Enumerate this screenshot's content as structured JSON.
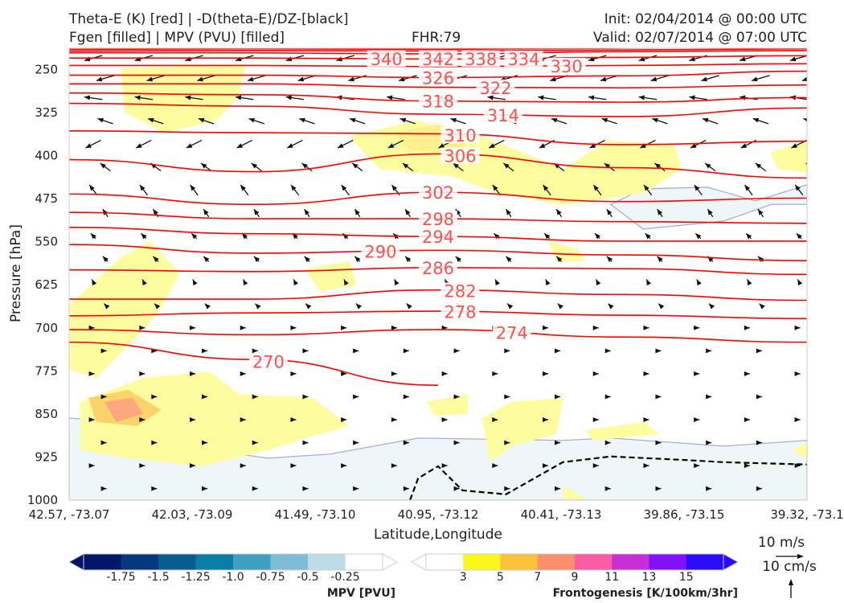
{
  "header": {
    "title_line1": "Theta-E (K) [red] | -D(theta-E)/DZ-[black]",
    "title_line2": "Fgen [filled] | MPV (PVU) [filled]",
    "fhr": "FHR:79",
    "init": "Init: 02/04/2014 @ 00:00 UTC",
    "valid": "Valid: 02/07/2014 @ 07:00 UTC"
  },
  "chart_data": {
    "type": "cross-section",
    "xlabel": "Latitude,Longitude",
    "ylabel": "Pressure [hPa]",
    "ylim": [
      213,
      1000
    ],
    "yticks": [
      "250",
      "325",
      "400",
      "475",
      "550",
      "625",
      "700",
      "775",
      "850",
      "925",
      "1000"
    ],
    "xticks": [
      "42.57, -73.07",
      "42.03, -73.09",
      "41.49, -73.10",
      "40.95, -73.12",
      "40.41, -73.13",
      "39.86, -73.15",
      "39.32, -73.1"
    ],
    "sample_fractions": [
      0,
      0.25,
      0.5,
      0.75,
      1
    ],
    "theta_e_contours": [
      {
        "label": "342",
        "p": [
          215,
          214,
          215,
          213,
          211
        ],
        "label_at": 0.5
      },
      {
        "label": "340",
        "p": [
          218,
          217,
          218,
          216,
          214
        ],
        "label_at": 0.43
      },
      {
        "label": "338",
        "p": [
          221,
          221,
          223,
          219,
          217
        ],
        "label_at": 0.5
      },
      {
        "label": "334",
        "p": [
          230,
          230,
          232,
          229,
          226
        ],
        "label_at": 0.5
      },
      {
        "label": "330",
        "p": [
          243,
          243,
          245,
          243,
          240
        ],
        "label_at": 0.5
      },
      {
        "label": "326",
        "p": [
          260,
          260,
          264,
          261,
          253
        ],
        "label_at": 0.5
      },
      {
        "label": "322",
        "p": [
          275,
          275,
          281,
          282,
          277
        ],
        "label_at": 0.52
      },
      {
        "label": "318",
        "p": [
          291,
          294,
          305,
          307,
          299
        ],
        "label_at": 0.5
      },
      {
        "label": "314",
        "p": [
          309,
          314,
          328,
          332,
          317
        ],
        "label_at": 0.53
      },
      {
        "label": "310",
        "p": [
          357,
          360,
          362,
          381,
          375
        ],
        "label_at": 0.53
      },
      {
        "label": "306",
        "p": [
          407,
          428,
          397,
          421,
          439
        ],
        "label_at": 0.53
      },
      {
        "label": "302",
        "p": [
          467,
          485,
          464,
          480,
          474
        ],
        "label_at": 0.5
      },
      {
        "label": "298",
        "p": [
          499,
          510,
          510,
          515,
          518
        ],
        "label_at": 0.5
      },
      {
        "label": "294",
        "p": [
          525,
          536,
          541,
          549,
          549
        ],
        "label_at": 0.5
      },
      {
        "label": "290",
        "p": [
          555,
          570,
          565,
          573,
          583
        ],
        "label_at": 0.48
      },
      {
        "label": "286",
        "p": [
          599,
          602,
          595,
          597,
          607
        ],
        "label_at": 0.5
      },
      {
        "label": "282",
        "p": [
          650,
          650,
          634,
          642,
          652
        ],
        "label_at": 0.53
      },
      {
        "label": "278",
        "p": [
          679,
          674,
          671,
          678,
          684
        ],
        "label_at": 0.53
      },
      {
        "label": "274",
        "p": [
          703,
          712,
          703,
          716,
          725
        ],
        "label_at": 0.6
      },
      {
        "label": "270",
        "p": [
          725,
          755,
          800,
          null,
          null
        ],
        "label_at": 0.27
      }
    ],
    "stability_dashed_contour": {
      "f": [
        0.462,
        0.473,
        0.5,
        0.533,
        0.592,
        0.669,
        0.734,
        0.832,
        0.887,
        1
      ],
      "p": [
        1000,
        962,
        941,
        983,
        990,
        934,
        924,
        930,
        934,
        938
      ]
    },
    "frontogenesis_fills": [
      {
        "level": 3,
        "color": "#fdfd9f",
        "f": [
          0.07,
          0.24,
          0.23,
          0.2,
          0.13,
          0.075
        ],
        "p": [
          248,
          241,
          297,
          339,
          360,
          325
        ]
      },
      {
        "level": 3,
        "color": "#fdfd9f",
        "f": [
          0.38,
          0.47,
          0.56,
          0.67,
          0.73,
          0.82,
          0.83,
          0.78,
          0.67,
          0.58,
          0.52,
          0.42
        ],
        "p": [
          367,
          339,
          367,
          423,
          374,
          381,
          423,
          465,
          486,
          465,
          437,
          423
        ]
      },
      {
        "level": 5,
        "color": "#fef08a",
        "f": [
          0.44,
          0.5,
          0.55,
          0.52,
          0.46
        ],
        "p": [
          360,
          345,
          370,
          395,
          390
        ]
      },
      {
        "level": 3,
        "color": "#fdfd9f",
        "f": [
          0.95,
          1,
          1,
          0.96
        ],
        "p": [
          395,
          374,
          430,
          423
        ]
      },
      {
        "level": 3,
        "color": "#fdfd9f",
        "f": [
          0,
          0.07,
          0.11,
          0.15,
          0.12,
          0.08,
          0.037,
          0
        ],
        "p": [
          661,
          577,
          549,
          605,
          675,
          731,
          787,
          773
        ]
      },
      {
        "level": 3,
        "color": "#fdfd9f",
        "f": [
          0.32,
          0.38,
          0.39,
          0.34
        ],
        "p": [
          598,
          584,
          626,
          636
        ]
      },
      {
        "level": 3,
        "color": "#fdfd9f",
        "f": [
          0.65,
          0.69,
          0.7,
          0.66
        ],
        "p": [
          549,
          563,
          584,
          584
        ]
      },
      {
        "level": 3,
        "color": "#fdfd9f",
        "f": [
          0.015,
          0.1,
          0.19,
          0.23,
          0.33,
          0.38,
          0.32,
          0.27,
          0.18,
          0.08,
          0.015
        ],
        "p": [
          829,
          787,
          776,
          815,
          822,
          871,
          892,
          913,
          941,
          927,
          913
        ]
      },
      {
        "level": 3,
        "color": "#fdfd9f",
        "f": [
          0.56,
          0.6,
          0.67,
          0.66,
          0.6,
          0.57
        ],
        "p": [
          857,
          829,
          822,
          885,
          906,
          934
        ]
      },
      {
        "level": 3,
        "color": "#fdfd9f",
        "f": [
          0.485,
          0.54,
          0.54,
          0.495
        ],
        "p": [
          829,
          815,
          850,
          853
        ]
      },
      {
        "level": 3,
        "color": "#fdfd9f",
        "f": [
          0.7,
          0.78,
          0.8,
          0.71
        ],
        "p": [
          878,
          864,
          885,
          896
        ]
      },
      {
        "level": 3,
        "color": "#fdfd9f",
        "f": [
          0.67,
          0.7,
          0.67
        ],
        "p": [
          976,
          997,
          1000
        ]
      },
      {
        "level": 3,
        "color": "#fdfd9f",
        "f": [
          0.98,
          1,
          1
        ],
        "p": [
          913,
          899,
          927
        ]
      },
      {
        "level": 5,
        "color": "#fcd26a",
        "f": [
          0.026,
          0.08,
          0.125,
          0.092,
          0.037
        ],
        "p": [
          822,
          808,
          843,
          871,
          864
        ]
      },
      {
        "level": 7,
        "color": "#fca77e",
        "f": [
          0.048,
          0.086,
          0.1,
          0.064
        ],
        "p": [
          829,
          822,
          850,
          864
        ]
      }
    ],
    "mpv_fills": [
      {
        "level": -0.25,
        "color": "#eef6f7",
        "f": [
          0,
          0.124,
          0.19,
          0.27,
          0.353,
          0.473,
          0.669,
          0.734,
          0.887,
          1,
          1,
          0
        ],
        "p": [
          857,
          871,
          913,
          927,
          920,
          892,
          896,
          892,
          906,
          896,
          1000,
          1000
        ]
      },
      {
        "level": -0.25,
        "color": "#eef6f7",
        "f": [
          0.734,
          0.778,
          0.865,
          0.93,
          1,
          1,
          0.952,
          0.887,
          0.778
        ],
        "p": [
          485,
          458,
          455,
          479,
          451,
          485,
          485,
          514,
          528
        ]
      },
      {
        "level": -0.5,
        "color": "#d6e9ee",
        "f": [
          0.04,
          0.124,
          0.15,
          0.09
        ],
        "p": [
          871,
          878,
          899,
          906
        ]
      }
    ],
    "wind_vectors": {
      "rows": [
        {
          "p": 230,
          "u": -7,
          "w": -2
        },
        {
          "p": 265,
          "u": -7,
          "w": -2
        },
        {
          "p": 300,
          "u": -7,
          "w": 1
        },
        {
          "p": 340,
          "u": -6,
          "w": 2
        },
        {
          "p": 380,
          "u": -6,
          "w": -3
        },
        {
          "p": 420,
          "u": -4,
          "w": 3
        },
        {
          "p": 460,
          "u": -3,
          "w": 4
        },
        {
          "p": 500,
          "u": -2,
          "w": 3
        },
        {
          "p": 540,
          "u": -2,
          "w": 2
        },
        {
          "p": 580,
          "u": -2,
          "w": 2
        },
        {
          "p": 620,
          "u": -1,
          "w": 2
        },
        {
          "p": 660,
          "u": -1,
          "w": 1
        },
        {
          "p": 700,
          "u": 1,
          "w": 0
        },
        {
          "p": 740,
          "u": 1,
          "w": 0
        },
        {
          "p": 780,
          "u": 1,
          "w": 0
        },
        {
          "p": 820,
          "u": 1,
          "w": 0
        },
        {
          "p": 860,
          "u": 1,
          "w": 0
        },
        {
          "p": 900,
          "u": 1,
          "w": 0
        },
        {
          "p": 940,
          "u": 1,
          "w": 0
        },
        {
          "p": 980,
          "u": 1,
          "w": 0
        }
      ],
      "columns": 15,
      "reference_horizontal": "10 m/s",
      "reference_vertical": "10 cm/s"
    },
    "colorbars": {
      "mpv": {
        "title": "MPV [PVU]",
        "ticks": [
          "-1.75",
          "-1.5",
          "-1.25",
          "-1.0",
          "-0.75",
          "-0.5",
          "-0.25"
        ],
        "colors": [
          "#03176a",
          "#05397c",
          "#075d90",
          "#087da6",
          "#3ea0c0",
          "#7fbcd6",
          "#bddde6",
          "#ffffff"
        ]
      },
      "fgen": {
        "title": "Frontogenesis [K/100km/3hr]",
        "ticks": [
          "3",
          "5",
          "7",
          "9",
          "11",
          "13",
          "15"
        ],
        "colors": [
          "#ffffff",
          "#fbf71b",
          "#fcc13d",
          "#fc8e6c",
          "#fb5aa5",
          "#c62ed6",
          "#8111f8",
          "#2a0bfc"
        ]
      }
    }
  }
}
